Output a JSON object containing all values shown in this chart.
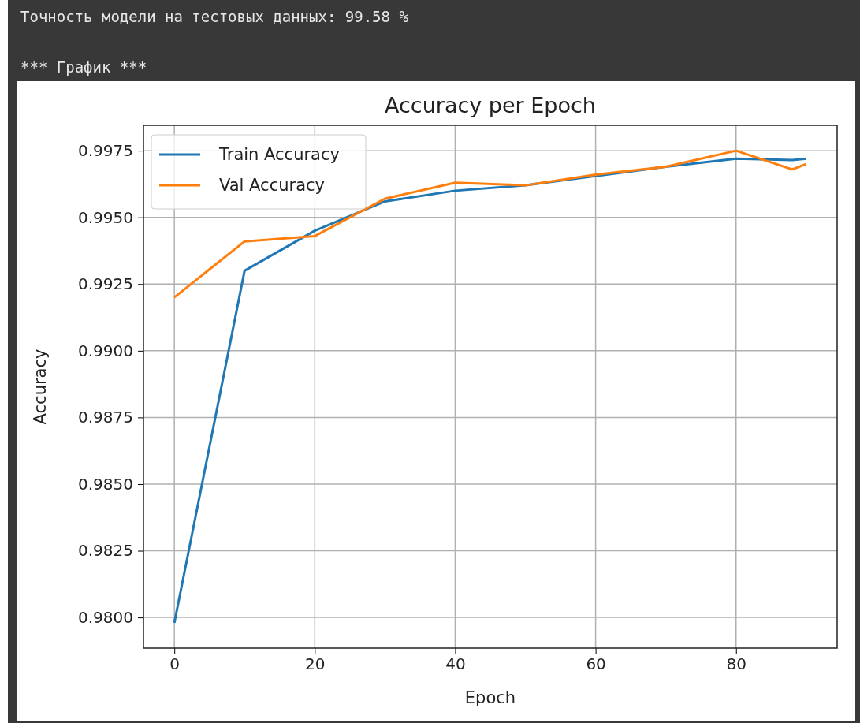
{
  "chart_data": {
    "type": "line",
    "title": "Accuracy per Epoch",
    "xlabel": "Epoch",
    "ylabel": "Accuracy",
    "annotations": [
      "Точность модели на тестовых данных: 99.58 %",
      "*** График ***"
    ],
    "x": [
      0,
      10,
      20,
      30,
      40,
      50,
      60,
      70,
      80,
      88,
      90
    ],
    "series": [
      {
        "name": "Train Accuracy",
        "color": "#1f77b4",
        "values": [
          0.9798,
          0.993,
          0.9945,
          0.9956,
          0.996,
          0.9962,
          0.99655,
          0.9969,
          0.9972,
          0.99715,
          0.9972
        ]
      },
      {
        "name": "Val Accuracy",
        "color": "#ff7f0e",
        "values": [
          0.992,
          0.9941,
          0.9943,
          0.9957,
          0.9963,
          0.9962,
          0.9966,
          0.9969,
          0.9975,
          0.9968,
          0.997
        ]
      }
    ],
    "xlim": [
      -4.4,
      94.4
    ],
    "xticks": [
      0,
      20,
      40,
      60,
      80
    ],
    "ylim": [
      0.97885,
      0.99845
    ],
    "yticks": [
      {
        "value": 0.98,
        "label": "0.9800"
      },
      {
        "value": 0.9825,
        "label": "0.9825"
      },
      {
        "value": 0.985,
        "label": "0.9850"
      },
      {
        "value": 0.9875,
        "label": "0.9875"
      },
      {
        "value": 0.99,
        "label": "0.9900"
      },
      {
        "value": 0.9925,
        "label": "0.9925"
      },
      {
        "value": 0.995,
        "label": "0.9950"
      },
      {
        "value": 0.9975,
        "label": "0.9975"
      }
    ],
    "grid": true,
    "legend": "top left",
    "line_style": "solid",
    "marker": "none"
  }
}
